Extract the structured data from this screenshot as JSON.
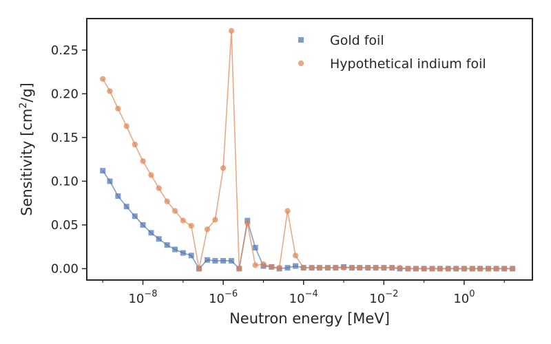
{
  "chart_data": {
    "type": "line",
    "title": "",
    "xlabel": "Neutron energy [MeV]",
    "ylabel_parts": [
      "Sensitivity [cm",
      "2",
      "/g]"
    ],
    "xscale": "log",
    "xlim": [
      4e-10,
      50
    ],
    "ylim": [
      -0.013,
      0.286
    ],
    "yticks": [
      0.0,
      0.05,
      0.1,
      0.15,
      0.2,
      0.25
    ],
    "ytick_labels": [
      "0.00",
      "0.05",
      "0.10",
      "0.15",
      "0.20",
      "0.25"
    ],
    "xticks": [
      1e-08,
      1e-06,
      0.0001,
      0.01,
      1
    ],
    "xtick_labels": [
      [
        "10",
        "−8"
      ],
      [
        "10",
        "−6"
      ],
      [
        "10",
        "−4"
      ],
      [
        "10",
        "−2"
      ],
      [
        "10",
        "0"
      ]
    ],
    "grid": false,
    "legend_position": "top-right",
    "x": [
      1e-09,
      1.5e-09,
      2.4e-09,
      3.9e-09,
      6.3e-09,
      1e-08,
      1.6e-08,
      2.5e-08,
      4e-08,
      6.3e-08,
      1e-07,
      1.6e-07,
      2.5e-07,
      4e-07,
      6.3e-07,
      1e-06,
      1.6e-06,
      2.5e-06,
      4e-06,
      6.3e-06,
      1e-05,
      1.6e-05,
      2.5e-05,
      4e-05,
      6.3e-05,
      0.0001,
      0.00016,
      0.00025,
      0.0004,
      0.00063,
      0.001,
      0.0016,
      0.0025,
      0.004,
      0.0063,
      0.01,
      0.016,
      0.025,
      0.04,
      0.063,
      0.1,
      0.16,
      0.25,
      0.4,
      0.63,
      1,
      1.6,
      2.5,
      4,
      6.3,
      10,
      16
    ],
    "series": [
      {
        "name": "Gold foil",
        "marker": "square",
        "color": "#4c72b0",
        "values": [
          0.112,
          0.1,
          0.083,
          0.071,
          0.06,
          0.05,
          0.041,
          0.034,
          0.027,
          0.022,
          0.018,
          0.015,
          0.0,
          0.01,
          0.009,
          0.009,
          0.009,
          0.0,
          0.055,
          0.024,
          0.003,
          0.002,
          0.0,
          0.001,
          0.003,
          0.001,
          0.001,
          0.001,
          0.001,
          0.001,
          0.002,
          0.001,
          0.001,
          0.001,
          0.001,
          0.001,
          0.001,
          0.0,
          0.0,
          0.0,
          0.0,
          0.0,
          0.0,
          0.0,
          0.0,
          0.0,
          0.0,
          0.0,
          0.0,
          0.0,
          0.0,
          0.0
        ]
      },
      {
        "name": "Hypothetical indium foil",
        "marker": "circle",
        "color": "#dd8452",
        "values": [
          0.217,
          0.203,
          0.183,
          0.163,
          0.142,
          0.123,
          0.107,
          0.092,
          0.077,
          0.066,
          0.055,
          0.049,
          0.0,
          0.045,
          0.056,
          0.115,
          0.272,
          0.0,
          0.052,
          0.004,
          0.005,
          0.002,
          0.001,
          0.066,
          0.015,
          0.001,
          0.001,
          0.001,
          0.001,
          0.001,
          0.001,
          0.001,
          0.001,
          0.001,
          0.001,
          0.001,
          0.001,
          0.001,
          0.0,
          0.0,
          0.0,
          0.0,
          0.0,
          0.0,
          0.0,
          0.0,
          0.0,
          0.0,
          0.0,
          0.0,
          0.0,
          0.0
        ]
      }
    ]
  }
}
